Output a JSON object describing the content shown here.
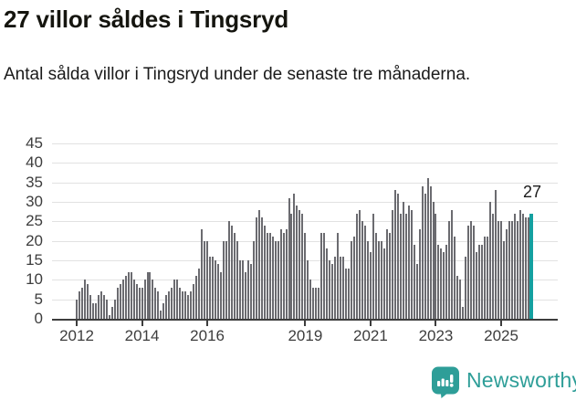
{
  "title": "27 villor såldes i Tingsryd",
  "subtitle": "Antal sålda villor i Tingsryd under de senaste tre månaderna.",
  "annotation": {
    "value_label": "27"
  },
  "branding": {
    "name": "Newsworthy"
  },
  "colors": {
    "bar": "#6b6b70",
    "highlight": "#14a0a0",
    "grid": "#e2e2e2",
    "axis": "#3d3d3d",
    "text": "#1a1a1a",
    "brand": "#2e9e98"
  },
  "chart_data": {
    "type": "bar",
    "title": "27 villor såldes i Tingsryd",
    "subtitle": "Antal sålda villor i Tingsryd under de senaste tre månaderna.",
    "x_start": "2012-01",
    "x_interval": "month",
    "values": [
      5,
      7,
      8,
      10,
      9,
      6,
      4,
      4,
      6,
      7,
      6,
      5,
      1,
      3,
      5,
      8,
      9,
      10,
      11,
      12,
      12,
      10,
      9,
      8,
      8,
      10,
      12,
      12,
      10,
      8,
      7,
      2,
      4,
      6,
      7,
      8,
      10,
      10,
      8,
      7,
      7,
      6,
      7,
      9,
      11,
      13,
      23,
      20,
      20,
      16,
      16,
      15,
      14,
      12,
      20,
      20,
      25,
      24,
      22,
      20,
      15,
      15,
      12,
      15,
      14,
      20,
      26,
      28,
      26,
      24,
      22,
      22,
      21,
      20,
      20,
      23,
      22,
      23,
      31,
      27,
      32,
      29,
      28,
      27,
      22,
      15,
      10,
      8,
      8,
      8,
      22,
      22,
      18,
      15,
      14,
      16,
      22,
      16,
      16,
      13,
      13,
      20,
      21,
      27,
      28,
      25,
      24,
      20,
      17,
      27,
      22,
      20,
      20,
      18,
      23,
      22,
      28,
      33,
      32,
      27,
      30,
      27,
      29,
      28,
      19,
      14,
      23,
      34,
      32,
      36,
      34,
      30,
      27,
      19,
      18,
      17,
      19,
      25,
      28,
      21,
      11,
      10,
      3,
      16,
      24,
      25,
      24,
      17,
      19,
      19,
      21,
      21,
      30,
      27,
      33,
      25,
      25,
      20,
      23,
      25,
      25,
      27,
      25,
      28,
      27,
      26,
      26,
      27
    ],
    "highlight_last": true,
    "last_value_label": "27",
    "ylabel": "",
    "xlabel": "",
    "ylim": [
      0,
      45
    ],
    "yticks": [
      0,
      5,
      10,
      15,
      20,
      25,
      30,
      35,
      40,
      45
    ],
    "xticks": [
      {
        "label": "2012",
        "month_index": 0
      },
      {
        "label": "2014",
        "month_index": 24
      },
      {
        "label": "2016",
        "month_index": 48
      },
      {
        "label": "2019",
        "month_index": 84
      },
      {
        "label": "2021",
        "month_index": 108
      },
      {
        "label": "2023",
        "month_index": 132
      },
      {
        "label": "2025",
        "month_index": 156
      }
    ],
    "grid": true,
    "legend": "none"
  }
}
